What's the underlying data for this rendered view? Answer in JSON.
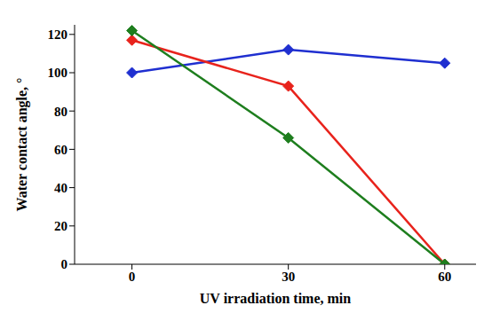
{
  "chart_data": {
    "type": "line",
    "x_label": "UV irradiation time, min",
    "y_label": "Water contact angle, °",
    "x": [
      0,
      30,
      60
    ],
    "xlim": [
      -11,
      66
    ],
    "xticks": [
      0,
      30,
      60
    ],
    "ylim": [
      0,
      125
    ],
    "yticks": [
      0,
      20,
      40,
      60,
      80,
      100,
      120
    ],
    "grid": false,
    "series": [
      {
        "color": "#1f2fd0",
        "marker": "diamond",
        "values": [
          100,
          112,
          105
        ]
      },
      {
        "color": "#e8231c",
        "marker": "diamond",
        "values": [
          117,
          93,
          0
        ]
      },
      {
        "color": "#1e7e1e",
        "marker": "diamond",
        "values": [
          122,
          66,
          0
        ]
      }
    ]
  }
}
